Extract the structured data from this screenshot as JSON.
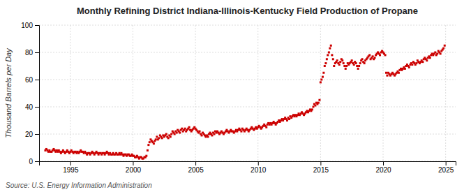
{
  "chart_data": {
    "type": "scatter",
    "title": "Monthly Refining District Indiana-Illinois-Kentucky Field Production of Propane",
    "y_label": "Thousand Barrels per Day",
    "source": "Source: U.S. Energy Information Administration",
    "color": "#cc0000",
    "marker": "square",
    "grid": true,
    "xlim": [
      1992.5,
      2025.8
    ],
    "xticks": [
      1995,
      2000,
      2005,
      2010,
      2015,
      2020,
      2025
    ],
    "ylim": [
      0,
      100
    ],
    "yticks": [
      0,
      20,
      40,
      60,
      80,
      100
    ],
    "x": [
      1993.0,
      1993.08,
      1993.17,
      1993.25,
      1993.33,
      1993.42,
      1993.5,
      1993.58,
      1993.67,
      1993.75,
      1993.83,
      1993.92,
      1994.0,
      1994.08,
      1994.17,
      1994.25,
      1994.33,
      1994.42,
      1994.5,
      1994.58,
      1994.67,
      1994.75,
      1994.83,
      1994.92,
      1995.0,
      1995.08,
      1995.17,
      1995.25,
      1995.33,
      1995.42,
      1995.5,
      1995.58,
      1995.67,
      1995.75,
      1995.83,
      1995.92,
      1996.0,
      1996.08,
      1996.17,
      1996.25,
      1996.33,
      1996.42,
      1996.5,
      1996.58,
      1996.67,
      1996.75,
      1996.83,
      1996.92,
      1997.0,
      1997.08,
      1997.17,
      1997.25,
      1997.33,
      1997.42,
      1997.5,
      1997.58,
      1997.67,
      1997.75,
      1997.83,
      1997.92,
      1998.0,
      1998.08,
      1998.17,
      1998.25,
      1998.33,
      1998.42,
      1998.5,
      1998.58,
      1998.67,
      1998.75,
      1998.83,
      1998.92,
      1999.0,
      1999.08,
      1999.17,
      1999.25,
      1999.33,
      1999.42,
      1999.5,
      1999.58,
      1999.67,
      1999.75,
      1999.83,
      1999.92,
      2000.0,
      2000.08,
      2000.17,
      2000.25,
      2000.33,
      2000.42,
      2000.5,
      2000.58,
      2000.67,
      2000.75,
      2000.83,
      2000.92,
      2001.0,
      2001.08,
      2001.17,
      2001.25,
      2001.33,
      2001.42,
      2001.5,
      2001.58,
      2001.67,
      2001.75,
      2001.83,
      2001.92,
      2002.0,
      2002.08,
      2002.17,
      2002.25,
      2002.33,
      2002.42,
      2002.5,
      2002.58,
      2002.67,
      2002.75,
      2002.83,
      2002.92,
      2003.0,
      2003.08,
      2003.17,
      2003.25,
      2003.33,
      2003.42,
      2003.5,
      2003.58,
      2003.67,
      2003.75,
      2003.83,
      2003.92,
      2004.0,
      2004.08,
      2004.17,
      2004.25,
      2004.33,
      2004.42,
      2004.5,
      2004.58,
      2004.67,
      2004.75,
      2004.83,
      2004.92,
      2005.0,
      2005.08,
      2005.17,
      2005.25,
      2005.33,
      2005.42,
      2005.5,
      2005.58,
      2005.67,
      2005.75,
      2005.83,
      2005.92,
      2006.0,
      2006.08,
      2006.17,
      2006.25,
      2006.33,
      2006.42,
      2006.5,
      2006.58,
      2006.67,
      2006.75,
      2006.83,
      2006.92,
      2007.0,
      2007.08,
      2007.17,
      2007.25,
      2007.33,
      2007.42,
      2007.5,
      2007.58,
      2007.67,
      2007.75,
      2007.83,
      2007.92,
      2008.0,
      2008.08,
      2008.17,
      2008.25,
      2008.33,
      2008.42,
      2008.5,
      2008.58,
      2008.67,
      2008.75,
      2008.83,
      2008.92,
      2009.0,
      2009.08,
      2009.17,
      2009.25,
      2009.33,
      2009.42,
      2009.5,
      2009.58,
      2009.67,
      2009.75,
      2009.83,
      2009.92,
      2010.0,
      2010.08,
      2010.17,
      2010.25,
      2010.33,
      2010.42,
      2010.5,
      2010.58,
      2010.67,
      2010.75,
      2010.83,
      2010.92,
      2011.0,
      2011.08,
      2011.17,
      2011.25,
      2011.33,
      2011.42,
      2011.5,
      2011.58,
      2011.67,
      2011.75,
      2011.83,
      2011.92,
      2012.0,
      2012.08,
      2012.17,
      2012.25,
      2012.33,
      2012.42,
      2012.5,
      2012.58,
      2012.67,
      2012.75,
      2012.83,
      2012.92,
      2013.0,
      2013.08,
      2013.17,
      2013.25,
      2013.33,
      2013.42,
      2013.5,
      2013.58,
      2013.67,
      2013.75,
      2013.83,
      2013.92,
      2014.0,
      2014.08,
      2014.17,
      2014.25,
      2014.33,
      2014.42,
      2014.5,
      2014.58,
      2014.67,
      2014.75,
      2014.83,
      2014.92,
      2015.0,
      2015.08,
      2015.17,
      2015.25,
      2015.33,
      2015.42,
      2015.5,
      2015.58,
      2015.67,
      2015.75,
      2015.83,
      2015.92,
      2016.0,
      2016.08,
      2016.17,
      2016.25,
      2016.33,
      2016.42,
      2016.5,
      2016.58,
      2016.67,
      2016.75,
      2016.83,
      2016.92,
      2017.0,
      2017.08,
      2017.17,
      2017.25,
      2017.33,
      2017.42,
      2017.5,
      2017.58,
      2017.67,
      2017.75,
      2017.83,
      2017.92,
      2018.0,
      2018.08,
      2018.17,
      2018.25,
      2018.33,
      2018.42,
      2018.5,
      2018.58,
      2018.67,
      2018.75,
      2018.83,
      2018.92,
      2019.0,
      2019.08,
      2019.17,
      2019.25,
      2019.33,
      2019.42,
      2019.5,
      2019.58,
      2019.67,
      2019.75,
      2019.83,
      2019.92,
      2020.0,
      2020.08,
      2020.17,
      2020.25,
      2020.33,
      2020.42,
      2020.5,
      2020.58,
      2020.67,
      2020.75,
      2020.83,
      2020.92,
      2021.0,
      2021.08,
      2021.17,
      2021.25,
      2021.33,
      2021.42,
      2021.5,
      2021.58,
      2021.67,
      2021.75,
      2021.83,
      2021.92,
      2022.0,
      2022.08,
      2022.17,
      2022.25,
      2022.33,
      2022.42,
      2022.5,
      2022.58,
      2022.67,
      2022.75,
      2022.83,
      2022.92,
      2023.0,
      2023.08,
      2023.17,
      2023.25,
      2023.33,
      2023.42,
      2023.5,
      2023.58,
      2023.67,
      2023.75,
      2023.83,
      2023.92,
      2024.0,
      2024.08,
      2024.17,
      2024.25,
      2024.33,
      2024.42,
      2024.5,
      2024.58,
      2024.67,
      2024.75,
      2024.83,
      2024.92
    ],
    "values": [
      8,
      9,
      8,
      7,
      8,
      7,
      7,
      8,
      9,
      8,
      7,
      8,
      7,
      8,
      7,
      6,
      7,
      8,
      7,
      6,
      7,
      8,
      7,
      6,
      7,
      8,
      7,
      6,
      7,
      7,
      6,
      7,
      6,
      7,
      8,
      7,
      7,
      6,
      7,
      6,
      5,
      6,
      6,
      5,
      6,
      7,
      6,
      5,
      6,
      7,
      6,
      5,
      6,
      6,
      5,
      6,
      6,
      5,
      6,
      7,
      6,
      5,
      6,
      5,
      5,
      6,
      5,
      5,
      6,
      5,
      5,
      6,
      5,
      6,
      5,
      4,
      5,
      5,
      4,
      5,
      5,
      4,
      4,
      5,
      4,
      4,
      3,
      3,
      4,
      3,
      2,
      3,
      3,
      2,
      2,
      3,
      3,
      4,
      8,
      12,
      14,
      16,
      15,
      14,
      13,
      15,
      16,
      18,
      16,
      17,
      19,
      18,
      17,
      19,
      18,
      19,
      20,
      18,
      17,
      19,
      18,
      20,
      22,
      21,
      20,
      22,
      21,
      23,
      22,
      21,
      23,
      24,
      22,
      23,
      24,
      22,
      23,
      24,
      25,
      23,
      22,
      23,
      24,
      25,
      24,
      23,
      22,
      21,
      22,
      20,
      19,
      21,
      20,
      19,
      18,
      19,
      18,
      20,
      21,
      20,
      19,
      21,
      20,
      22,
      21,
      22,
      21,
      20,
      21,
      22,
      21,
      20,
      21,
      22,
      23,
      22,
      21,
      22,
      23,
      22,
      22,
      21,
      22,
      23,
      22,
      23,
      24,
      23,
      22,
      24,
      23,
      22,
      23,
      24,
      23,
      22,
      23,
      24,
      25,
      24,
      23,
      24,
      25,
      24,
      25,
      26,
      25,
      24,
      25,
      26,
      27,
      26,
      25,
      27,
      28,
      27,
      28,
      27,
      28,
      29,
      28,
      27,
      28,
      29,
      30,
      29,
      30,
      31,
      30,
      31,
      32,
      31,
      30,
      32,
      31,
      33,
      32,
      33,
      34,
      33,
      34,
      33,
      34,
      35,
      34,
      35,
      36,
      35,
      34,
      35,
      36,
      37,
      36,
      37,
      38,
      37,
      38,
      40,
      42,
      41,
      43,
      42,
      43,
      45,
      58,
      60,
      62,
      65,
      70,
      72,
      75,
      78,
      80,
      83,
      85,
      78,
      75,
      70,
      72,
      73,
      74,
      72,
      71,
      73,
      75,
      74,
      72,
      70,
      68,
      70,
      72,
      71,
      72,
      73,
      74,
      72,
      71,
      73,
      72,
      70,
      68,
      70,
      72,
      74,
      75,
      73,
      72,
      74,
      75,
      76,
      77,
      78,
      75,
      76,
      77,
      75,
      76,
      78,
      79,
      80,
      79,
      78,
      80,
      81,
      80,
      79,
      78,
      65,
      63,
      65,
      64,
      63,
      64,
      65,
      64,
      63,
      64,
      65,
      66,
      65,
      67,
      68,
      67,
      68,
      69,
      68,
      70,
      71,
      70,
      69,
      71,
      72,
      71,
      73,
      72,
      71,
      72,
      74,
      73,
      72,
      73,
      74,
      73,
      75,
      76,
      75,
      74,
      76,
      77,
      76,
      78,
      79,
      78,
      79,
      80,
      78,
      79,
      81,
      80,
      79,
      81,
      82,
      83,
      85
    ]
  }
}
